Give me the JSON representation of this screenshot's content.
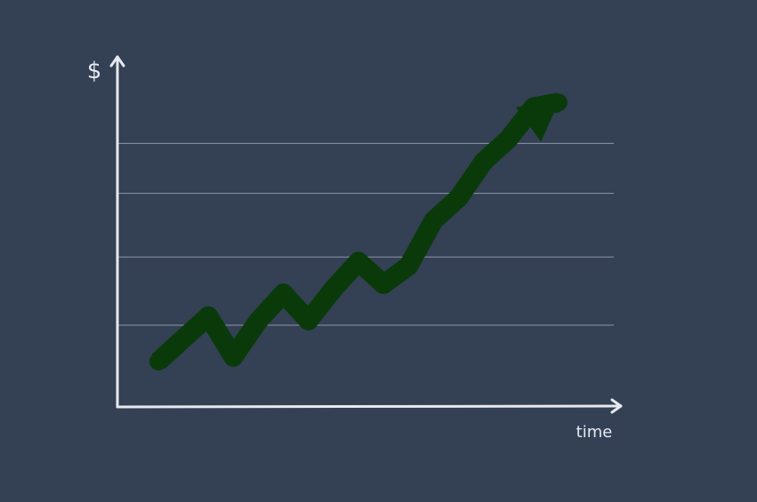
{
  "chart_data": {
    "type": "line",
    "title": "",
    "xlabel": "time",
    "ylabel": "$",
    "grid": true,
    "legend": "none",
    "x": [
      0,
      1,
      2,
      3,
      4,
      5,
      6,
      7,
      8,
      9,
      10,
      11,
      12,
      13,
      14,
      15,
      16
    ],
    "series": [
      {
        "values": [
          1.0,
          1.5,
          2.0,
          1.1,
          1.9,
          2.5,
          1.9,
          2.6,
          3.2,
          2.7,
          3.1,
          4.1,
          4.6,
          5.4,
          5.9,
          6.6,
          6.7
        ],
        "color": "#0a3a0a"
      }
    ],
    "xlim": [
      0,
      16
    ],
    "ylim": [
      0,
      7
    ],
    "gridlines_y": [
      1.8,
      3.3,
      4.7,
      5.8
    ]
  },
  "colors": {
    "background": "#344054",
    "axis": "#e6e9ef",
    "grid": "#8d96a8",
    "line": "#0a3a0a"
  }
}
